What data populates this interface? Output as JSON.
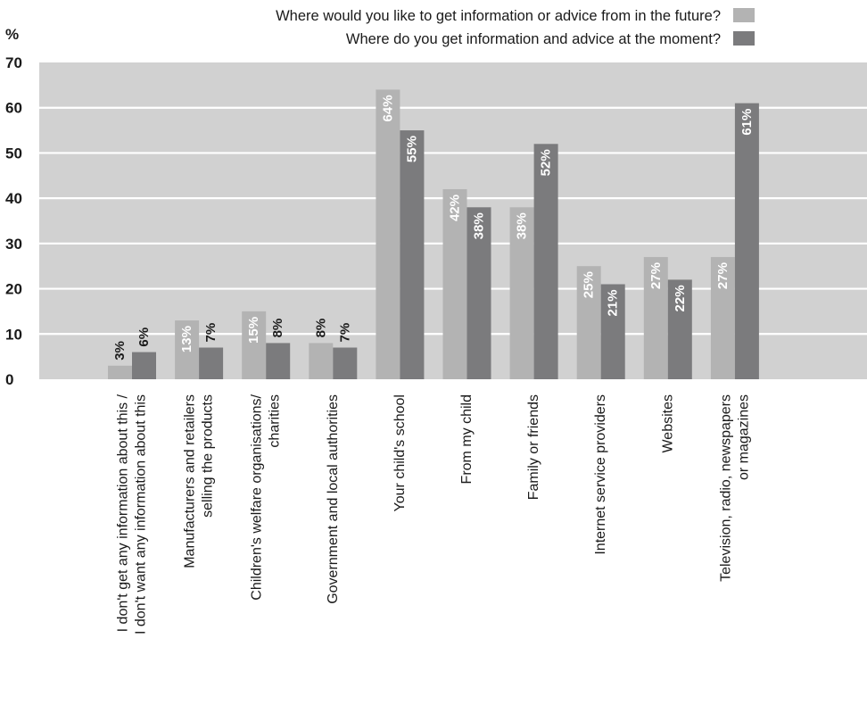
{
  "chart_data": {
    "type": "bar",
    "unit_label": "%",
    "ylim": [
      0,
      70
    ],
    "yticks": [
      0,
      10,
      20,
      30,
      40,
      50,
      60,
      70
    ],
    "grid": true,
    "legend_position": "top-right",
    "categories": [
      [
        "I don't get any information about this /",
        "I don't want any information about this"
      ],
      [
        "Manufacturers and retailers",
        "selling the products"
      ],
      [
        "Children's welfare organisations/",
        "charities"
      ],
      [
        "Government and local authorities"
      ],
      [
        "Your child's school"
      ],
      [
        "From my child"
      ],
      [
        "Family or friends"
      ],
      [
        "Internet service providers"
      ],
      [
        "Websites"
      ],
      [
        "Television, radio, newspapers",
        "or magazines"
      ]
    ],
    "series": [
      {
        "name": "Where would you like to get information or advice from in the future?",
        "color": "#b3b3b3",
        "values": [
          3,
          13,
          15,
          8,
          64,
          42,
          38,
          25,
          27,
          27
        ],
        "labels": [
          "3%",
          "13%",
          "15%",
          "8%",
          "64%",
          "42%",
          "38%",
          "25%",
          "27%",
          "27%"
        ]
      },
      {
        "name": "Where do you get information and advice at the moment?",
        "color": "#7b7b7d",
        "values": [
          6,
          7,
          8,
          7,
          55,
          38,
          52,
          21,
          22,
          61
        ],
        "labels": [
          "6%",
          "7%",
          "8%",
          "7%",
          "55%",
          "38%",
          "52%",
          "21%",
          "22%",
          "61%"
        ]
      }
    ],
    "plot_background": "#d1d1d1",
    "gridline_color": "#ffffff",
    "label_inside_color": "#ffffff",
    "label_outside_color": "#1a1a1a"
  }
}
